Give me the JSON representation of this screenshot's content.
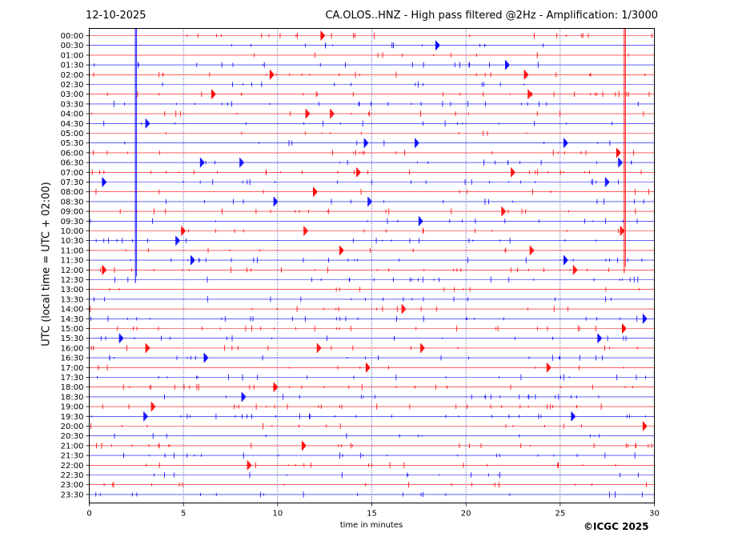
{
  "date": "12-10-2025",
  "title": "CA.OLOS..HNZ - High pass filtered @2Hz - Amplification: 1/3000",
  "credit": "©ICGC 2025",
  "colors": {
    "red": "#ff0000",
    "blue": "#0000ff",
    "grid": "#000080"
  },
  "chart_data": {
    "type": "line",
    "title": "CA.OLOS..HNZ - High pass filtered @2Hz - Amplification: 1/3000",
    "xlabel": "time in minutes",
    "ylabel": "UTC (local time = UTC + 02:00)",
    "xlim": [
      0,
      30
    ],
    "x_ticks": [
      "0",
      "5",
      "10",
      "15",
      "20",
      "25",
      "30"
    ],
    "rows": [
      "00:00",
      "00:30",
      "01:00",
      "01:30",
      "02:00",
      "02:30",
      "03:00",
      "03:30",
      "04:00",
      "04:30",
      "05:00",
      "05:30",
      "06:00",
      "06:30",
      "07:00",
      "07:30",
      "08:00",
      "08:30",
      "09:00",
      "09:30",
      "10:00",
      "10:30",
      "11:00",
      "11:30",
      "12:00",
      "12:30",
      "13:00",
      "13:30",
      "14:00",
      "14:30",
      "15:00",
      "15:30",
      "16:00",
      "16:30",
      "17:00",
      "17:30",
      "18:00",
      "18:30",
      "19:00",
      "19:30",
      "20:00",
      "20:30",
      "21:00",
      "21:30",
      "22:00",
      "22:30",
      "23:00",
      "23:30"
    ],
    "row_colors": "alternating red/blue",
    "events": [
      {
        "row": "00:00",
        "minute": 12.3
      },
      {
        "row": "00:30",
        "minute": 18.4
      },
      {
        "row": "01:30",
        "minute": 22.1
      },
      {
        "row": "02:00",
        "minute": 9.6
      },
      {
        "row": "02:00",
        "minute": 23.1
      },
      {
        "row": "03:00",
        "minute": 6.5
      },
      {
        "row": "03:00",
        "minute": 23.3
      },
      {
        "row": "04:00",
        "minute": 12.8
      },
      {
        "row": "04:00",
        "minute": 11.5
      },
      {
        "row": "04:30",
        "minute": 3.0
      },
      {
        "row": "05:30",
        "minute": 14.6
      },
      {
        "row": "05:30",
        "minute": 17.3
      },
      {
        "row": "05:30",
        "minute": 25.2
      },
      {
        "row": "06:00",
        "minute": 28.0
      },
      {
        "row": "06:30",
        "minute": 5.9
      },
      {
        "row": "06:30",
        "minute": 8.0
      },
      {
        "row": "06:30",
        "minute": 28.1
      },
      {
        "row": "07:00",
        "minute": 14.2
      },
      {
        "row": "07:00",
        "minute": 22.4
      },
      {
        "row": "07:30",
        "minute": 0.7
      },
      {
        "row": "07:30",
        "minute": 27.4
      },
      {
        "row": "08:00",
        "minute": 11.9
      },
      {
        "row": "08:30",
        "minute": 9.8
      },
      {
        "row": "08:30",
        "minute": 14.8
      },
      {
        "row": "09:00",
        "minute": 21.9
      },
      {
        "row": "09:30",
        "minute": 17.5
      },
      {
        "row": "10:00",
        "minute": 4.9
      },
      {
        "row": "10:00",
        "minute": 11.4
      },
      {
        "row": "10:00",
        "minute": 28.2
      },
      {
        "row": "10:30",
        "minute": 4.6
      },
      {
        "row": "11:00",
        "minute": 13.3
      },
      {
        "row": "11:00",
        "minute": 23.4
      },
      {
        "row": "11:30",
        "minute": 5.4
      },
      {
        "row": "11:30",
        "minute": 25.2
      },
      {
        "row": "12:00",
        "minute": 0.7
      },
      {
        "row": "12:00",
        "minute": 25.7
      },
      {
        "row": "14:00",
        "minute": 16.6
      },
      {
        "row": "14:30",
        "minute": 29.4
      },
      {
        "row": "15:00",
        "minute": 28.3
      },
      {
        "row": "15:30",
        "minute": 1.6
      },
      {
        "row": "15:30",
        "minute": 27.0
      },
      {
        "row": "16:00",
        "minute": 3.0
      },
      {
        "row": "16:00",
        "minute": 12.1
      },
      {
        "row": "16:00",
        "minute": 17.6
      },
      {
        "row": "16:30",
        "minute": 6.1
      },
      {
        "row": "17:00",
        "minute": 14.7
      },
      {
        "row": "17:00",
        "minute": 24.3
      },
      {
        "row": "18:00",
        "minute": 9.8
      },
      {
        "row": "18:30",
        "minute": 8.1
      },
      {
        "row": "19:00",
        "minute": 3.3
      },
      {
        "row": "19:30",
        "minute": 2.9
      },
      {
        "row": "19:30",
        "minute": 25.6
      },
      {
        "row": "20:00",
        "minute": 29.4
      },
      {
        "row": "21:00",
        "minute": 11.3
      },
      {
        "row": "22:00",
        "minute": 8.4
      }
    ],
    "vertical_disturbances": [
      {
        "minute": 2.45,
        "from_row": "00:00",
        "to_row": "12:30",
        "color": "blue"
      },
      {
        "minute": 28.4,
        "from_row": "00:00",
        "to_row": "12:00",
        "color": "red"
      }
    ]
  }
}
